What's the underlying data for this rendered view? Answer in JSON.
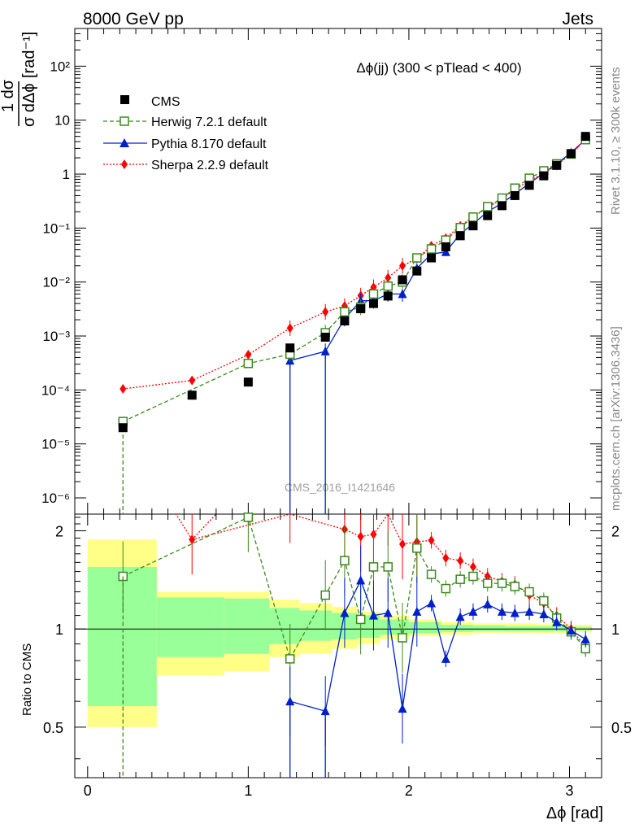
{
  "header": {
    "energy": "8000 GeV pp",
    "category": "Jets"
  },
  "side": {
    "rivet": "Rivet 3.1.10, ≥ 300k events",
    "mcplots": "mcplots.cern.ch [arXiv:1306.3436]"
  },
  "labels": {
    "title": "Δϕ(jj) (300 < pTlead <  400)",
    "ylabel_num": "1 dσ",
    "ylabel_den": "σ dΔϕ",
    "ylabel_unit": "[rad⁻¹]",
    "xlabel": "Δϕ [rad]",
    "ratio_ylabel": "Ratio to CMS",
    "watermark": "CMS_2016_I1421646"
  },
  "colors": {
    "herwig": "#3a8a1a",
    "pythia": "#0020cc",
    "sherpa": "#ff0000",
    "band_stat": "#99ff99",
    "band_tot": "#ffff88"
  },
  "chart_data": {
    "type": "scatter",
    "x": [
      0.22,
      0.65,
      1.0,
      1.26,
      1.48,
      1.6,
      1.7,
      1.78,
      1.87,
      1.96,
      2.05,
      2.14,
      2.23,
      2.32,
      2.4,
      2.49,
      2.58,
      2.66,
      2.75,
      2.84,
      2.92,
      3.01,
      3.1
    ],
    "xlim": [
      -0.08,
      3.2
    ],
    "ylim_main": [
      5e-07,
      500
    ],
    "ylim_ratio": [
      0.35,
      2.25
    ],
    "xticks": [
      "0",
      "1",
      "2",
      "3"
    ],
    "main_yticks": [
      "10⁻⁶",
      "10⁻⁵",
      "10⁻⁴",
      "10⁻³",
      "10⁻²",
      "10⁻¹",
      "1",
      "10",
      "10²"
    ],
    "ratio_yticks": [
      "0.5",
      "1",
      "2"
    ],
    "series": [
      {
        "name": "CMS",
        "values": [
          2e-05,
          8e-05,
          0.00014,
          0.0006,
          0.00095,
          0.0019,
          0.0032,
          0.004,
          0.0055,
          0.011,
          0.016,
          0.028,
          0.045,
          0.072,
          0.11,
          0.17,
          0.26,
          0.4,
          0.62,
          0.93,
          1.45,
          2.4,
          5.0
        ]
      },
      {
        "name": "Herwig 7.2.1 default",
        "values": [
          2.6e-05,
          null,
          0.00031,
          0.00046,
          0.00115,
          0.0028,
          0.0034,
          0.006,
          0.0084,
          0.01,
          0.028,
          0.041,
          0.06,
          0.102,
          0.16,
          0.25,
          0.36,
          0.55,
          0.84,
          1.15,
          1.55,
          2.35,
          4.35
        ],
        "ratio": [
          1.45,
          null,
          2.2,
          0.81,
          1.27,
          1.62,
          1.07,
          1.55,
          1.55,
          0.94,
          1.77,
          1.47,
          1.33,
          1.42,
          1.45,
          1.38,
          1.38,
          1.35,
          1.3,
          1.22,
          1.08,
          0.98,
          0.87
        ]
      },
      {
        "name": "Pythia 8.170 default",
        "values": [
          null,
          null,
          null,
          0.00035,
          0.00052,
          0.0021,
          0.0045,
          0.0045,
          0.006,
          0.006,
          0.018,
          0.033,
          0.036,
          0.078,
          0.12,
          0.2,
          0.29,
          0.43,
          0.67,
          1.05,
          1.55,
          2.5,
          4.4
        ],
        "ratio": [
          null,
          null,
          null,
          0.6,
          0.56,
          1.12,
          1.41,
          1.1,
          1.12,
          0.57,
          1.13,
          1.2,
          0.81,
          1.09,
          1.13,
          1.19,
          1.13,
          1.12,
          1.13,
          1.11,
          1.05,
          0.99,
          0.93
        ]
      },
      {
        "name": "Sherpa 2.2.9 default",
        "values": [
          0.000105,
          0.00015,
          0.00045,
          0.0014,
          0.0028,
          0.0036,
          0.0056,
          0.008,
          0.012,
          0.02,
          0.027,
          0.047,
          0.065,
          0.11,
          0.16,
          0.24,
          0.35,
          0.52,
          0.75,
          1.03,
          1.45,
          2.4,
          4.4
        ],
        "ratio": [
          null,
          1.88,
          null,
          2.35,
          null,
          2.02,
          1.92,
          1.95,
          2.3,
          1.82,
          1.85,
          1.87,
          1.65,
          1.62,
          1.55,
          1.45,
          1.4,
          1.37,
          1.27,
          1.2,
          1.1,
          1.0,
          0.88
        ]
      }
    ]
  }
}
